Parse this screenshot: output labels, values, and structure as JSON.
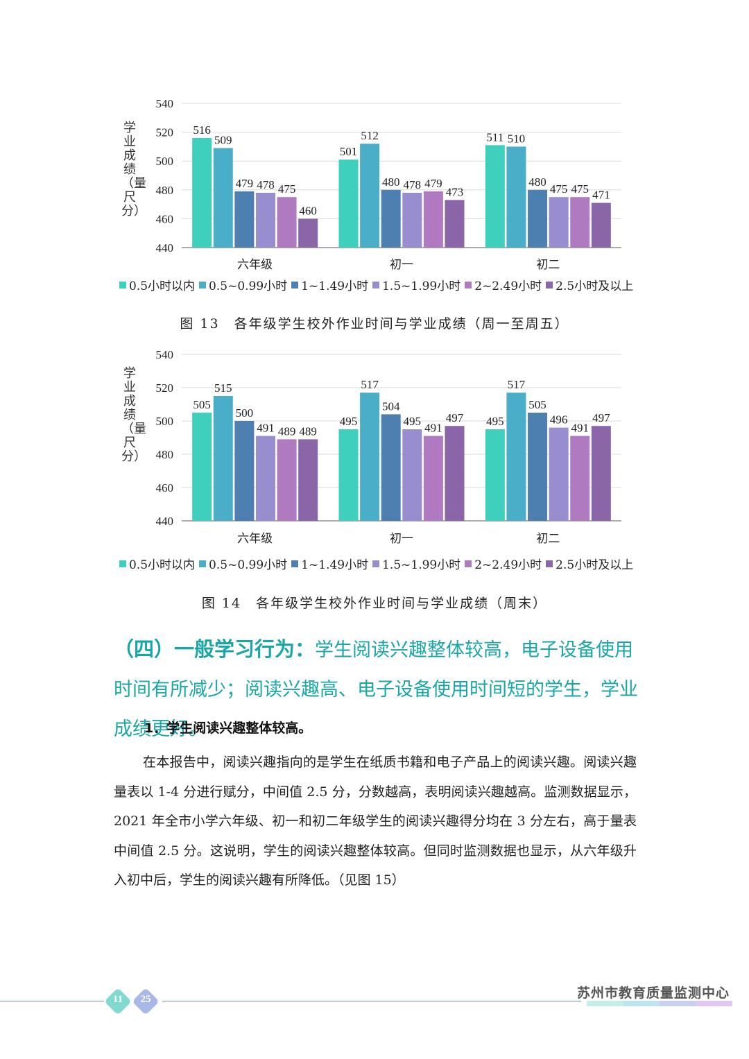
{
  "colors": [
    "#3fcfbd",
    "#4aaec8",
    "#4d7fb0",
    "#978dcf",
    "#b07ac0",
    "#8a66a8"
  ],
  "chart_data": [
    {
      "type": "bar",
      "title": "图 13　各年级学生校外作业时间与学业成绩（周一至周五）",
      "ylabel": "学业成绩（量尺分）",
      "xlabel": "",
      "ylim": [
        440,
        540
      ],
      "yticks": [
        "440",
        "460",
        "480",
        "500",
        "520",
        "540"
      ],
      "categories": [
        "六年级",
        "初一",
        "初二"
      ],
      "series": [
        {
          "name": "0.5小时以内",
          "values": [
            516,
            501,
            511
          ]
        },
        {
          "name": "0.5~0.99小时",
          "values": [
            509,
            512,
            510
          ]
        },
        {
          "name": "1~1.49小时",
          "values": [
            479,
            480,
            480
          ]
        },
        {
          "name": "1.5~1.99小时",
          "values": [
            478,
            478,
            475
          ]
        },
        {
          "name": "2~2.49小时",
          "values": [
            475,
            479,
            475
          ]
        },
        {
          "name": "2.5小时及以上",
          "values": [
            460,
            473,
            471
          ]
        }
      ]
    },
    {
      "type": "bar",
      "title": "图 14　各年级学生校外作业时间与学业成绩（周末）",
      "ylabel": "学业成绩（量尺分）",
      "xlabel": "",
      "ylim": [
        440,
        540
      ],
      "yticks": [
        "440",
        "460",
        "480",
        "500",
        "520",
        "540"
      ],
      "categories": [
        "六年级",
        "初一",
        "初二"
      ],
      "series": [
        {
          "name": "0.5小时以内",
          "values": [
            505,
            495,
            495
          ]
        },
        {
          "name": "0.5~0.99小时",
          "values": [
            515,
            517,
            517
          ]
        },
        {
          "name": "1~1.49小时",
          "values": [
            500,
            504,
            505
          ]
        },
        {
          "name": "1.5~1.99小时",
          "values": [
            491,
            495,
            496
          ]
        },
        {
          "name": "2~2.49小时",
          "values": [
            489,
            491,
            491
          ]
        },
        {
          "name": "2.5小时及以上",
          "values": [
            489,
            497,
            497
          ]
        }
      ]
    }
  ],
  "section": {
    "heading_bold": "（四）一般学习行为：",
    "heading_rest": "学生阅读兴趣整体较高，电子设备使用时间有所减少；阅读兴趣高、电子设备使用时间短的学生，学业成绩更好。"
  },
  "subheading": "1．学生阅读兴趣整体较高。",
  "paragraph": "在本报告中，阅读兴趣指向的是学生在纸质书籍和电子产品上的阅读兴趣。阅读兴趣量表以 1-4 分进行赋分，中间值 2.5 分，分数越高，表明阅读兴趣越高。监测数据显示，2021 年全市小学六年级、初一和初二年级学生的阅读兴趣得分均在 3 分左右，高于量表中间值 2.5 分。这说明，学生的阅读兴趣整体较高。但同时监测数据也显示，从六年级升入初中后，学生的阅读兴趣有所降低。（见图 15）",
  "footer": {
    "page_current": "11",
    "page_total": "25",
    "organization": "苏州市教育质量监测中心"
  }
}
